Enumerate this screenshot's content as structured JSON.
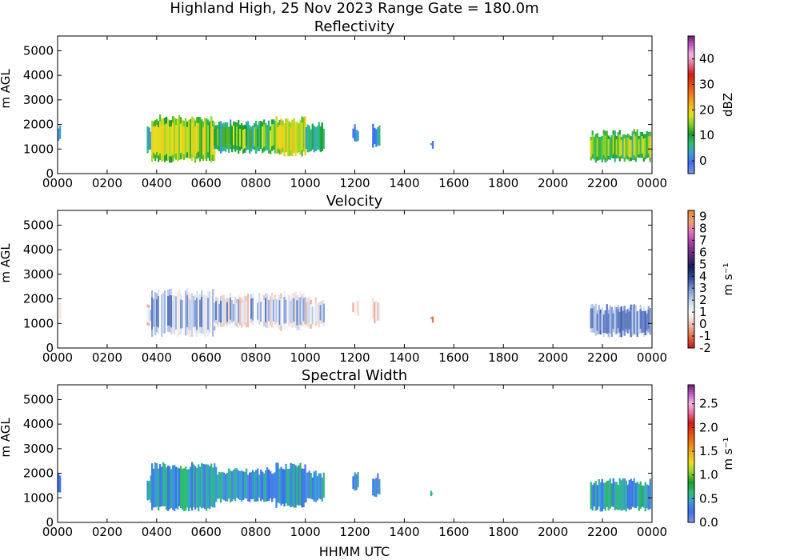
{
  "figure": {
    "suptitle": "Highland High, 25 Nov 2023 Range Gate = 180.0m",
    "xlabel": "HHMM UTC"
  },
  "chart_data": [
    {
      "type": "heatmap",
      "title": "Reflectivity",
      "ylabel": "m AGL",
      "xticks": [
        "0000",
        "0200",
        "0400",
        "0600",
        "0800",
        "1000",
        "1200",
        "1400",
        "1600",
        "1800",
        "2000",
        "2200",
        "0000"
      ],
      "yticks": [
        "0",
        "1000",
        "2000",
        "3000",
        "4000",
        "5000"
      ],
      "xlim_hours": [
        0,
        24
      ],
      "ylim": [
        0,
        5600
      ],
      "colorbar": {
        "label": "dBZ",
        "ticks": [
          "0",
          "10",
          "20",
          "30",
          "40"
        ],
        "tick_values": [
          0,
          10,
          20,
          30,
          40
        ],
        "range": [
          -5,
          49
        ],
        "colors": [
          "#7a93e6",
          "#3f6ef0",
          "#3aa0d8",
          "#2fbf6f",
          "#1a9a2a",
          "#8ad62a",
          "#e8e020",
          "#f3b21a",
          "#ef7d15",
          "#e84a10",
          "#d11a10",
          "#e86a9a",
          "#f2b8e0",
          "#c05ac8",
          "#6a1a6a"
        ]
      },
      "echo_regions": [
        {
          "start": 0.0,
          "end": 0.12,
          "base": 1300,
          "top": 1900,
          "level": 0.12
        },
        {
          "start": 3.6,
          "end": 3.78,
          "base": 900,
          "top": 1800,
          "level": 0.15
        },
        {
          "start": 3.78,
          "end": 6.3,
          "base": 550,
          "top": 2250,
          "level": 0.33
        },
        {
          "start": 6.3,
          "end": 8.8,
          "base": 900,
          "top": 2050,
          "level": 0.22
        },
        {
          "start": 8.8,
          "end": 10.0,
          "base": 800,
          "top": 2200,
          "level": 0.4
        },
        {
          "start": 10.0,
          "end": 10.75,
          "base": 900,
          "top": 1950,
          "level": 0.2
        },
        {
          "start": 11.9,
          "end": 12.1,
          "base": 1400,
          "top": 1900,
          "level": 0.1
        },
        {
          "start": 12.7,
          "end": 13.0,
          "base": 1100,
          "top": 1900,
          "level": 0.12
        },
        {
          "start": 15.05,
          "end": 15.12,
          "base": 1100,
          "top": 1300,
          "level": 0.1
        },
        {
          "start": 21.5,
          "end": 23.9,
          "base": 550,
          "top": 1650,
          "level": 0.25
        }
      ]
    },
    {
      "type": "heatmap",
      "title": "Velocity",
      "ylabel": "m s⁻¹",
      "yaxis_label": "m AGL",
      "xticks": [
        "0000",
        "0200",
        "0400",
        "0600",
        "0800",
        "1000",
        "1200",
        "1400",
        "1600",
        "1800",
        "2000",
        "2200",
        "0000"
      ],
      "yticks": [
        "0",
        "1000",
        "2000",
        "3000",
        "4000",
        "5000"
      ],
      "xlim_hours": [
        0,
        24
      ],
      "ylim": [
        0,
        5600
      ],
      "colorbar": {
        "label": "m s⁻¹",
        "ticks": [
          "-2",
          "-1",
          "0",
          "1",
          "2",
          "3",
          "4",
          "5",
          "6",
          "7",
          "8",
          "9"
        ],
        "tick_values": [
          -2,
          -1,
          0,
          1,
          2,
          3,
          4,
          5,
          6,
          7,
          8,
          9
        ],
        "range": [
          -2,
          9.5
        ],
        "colors": [
          "#c8201a",
          "#e87050",
          "#f2c0b0",
          "#ffffff",
          "#c8d6ee",
          "#7f9ad6",
          "#2f4fa0",
          "#1a1a5a",
          "#5a2a7a",
          "#a03aa0",
          "#e070c0",
          "#f0a070",
          "#f08030"
        ]
      },
      "echo_regions": [
        {
          "start": 0.0,
          "end": 0.12,
          "base": 1300,
          "top": 1900,
          "level": 0.2
        },
        {
          "start": 3.6,
          "end": 3.78,
          "base": 900,
          "top": 1800,
          "level": 0.22
        },
        {
          "start": 3.78,
          "end": 6.3,
          "base": 550,
          "top": 2300,
          "level": 0.3
        },
        {
          "start": 6.3,
          "end": 8.8,
          "base": 900,
          "top": 2100,
          "level": 0.25
        },
        {
          "start": 8.8,
          "end": 10.0,
          "base": 800,
          "top": 2200,
          "level": 0.25
        },
        {
          "start": 10.0,
          "end": 10.75,
          "base": 900,
          "top": 1950,
          "level": 0.22
        },
        {
          "start": 11.9,
          "end": 12.1,
          "base": 1400,
          "top": 1900,
          "level": 0.2
        },
        {
          "start": 12.7,
          "end": 13.0,
          "base": 1100,
          "top": 1900,
          "level": 0.2
        },
        {
          "start": 15.05,
          "end": 15.12,
          "base": 1100,
          "top": 1300,
          "level": 0.15
        },
        {
          "start": 21.5,
          "end": 23.9,
          "base": 550,
          "top": 1650,
          "level": 0.4
        }
      ]
    },
    {
      "type": "heatmap",
      "title": "Spectral Width",
      "ylabel": "m s⁻¹",
      "yaxis_label": "m AGL",
      "xticks": [
        "0000",
        "0200",
        "0400",
        "0600",
        "0800",
        "1000",
        "1200",
        "1400",
        "1600",
        "1800",
        "2000",
        "2200",
        "0000"
      ],
      "yticks": [
        "0",
        "1000",
        "2000",
        "3000",
        "4000",
        "5000"
      ],
      "xlim_hours": [
        0,
        24
      ],
      "ylim": [
        0,
        5600
      ],
      "colorbar": {
        "label": "m s⁻¹",
        "ticks": [
          "0.0",
          "0.5",
          "1.0",
          "1.5",
          "2.0",
          "2.5"
        ],
        "tick_values": [
          0,
          0.5,
          1.0,
          1.5,
          2.0,
          2.5
        ],
        "range": [
          0,
          2.9
        ],
        "colors": [
          "#7a93e6",
          "#3f6ef0",
          "#3aa0d8",
          "#2fbf6f",
          "#1a9a2a",
          "#8ad62a",
          "#e8e020",
          "#f3b21a",
          "#ef7d15",
          "#e84a10",
          "#d11a10",
          "#e86a9a",
          "#f2b8e0",
          "#c05ac8",
          "#6a1a6a"
        ]
      },
      "echo_regions": [
        {
          "start": 0.0,
          "end": 0.12,
          "base": 1300,
          "top": 2000,
          "level": 0.1
        },
        {
          "start": 3.6,
          "end": 3.78,
          "base": 900,
          "top": 1800,
          "level": 0.12
        },
        {
          "start": 3.78,
          "end": 6.3,
          "base": 550,
          "top": 2300,
          "level": 0.14
        },
        {
          "start": 6.3,
          "end": 8.8,
          "base": 900,
          "top": 2100,
          "level": 0.12
        },
        {
          "start": 8.8,
          "end": 10.0,
          "base": 700,
          "top": 2300,
          "level": 0.14
        },
        {
          "start": 10.0,
          "end": 10.75,
          "base": 900,
          "top": 1950,
          "level": 0.12
        },
        {
          "start": 11.9,
          "end": 12.1,
          "base": 1400,
          "top": 1900,
          "level": 0.1
        },
        {
          "start": 12.7,
          "end": 13.0,
          "base": 1100,
          "top": 1900,
          "level": 0.1
        },
        {
          "start": 15.05,
          "end": 15.12,
          "base": 1100,
          "top": 1300,
          "level": 0.1
        },
        {
          "start": 21.5,
          "end": 23.9,
          "base": 550,
          "top": 1650,
          "level": 0.16
        }
      ]
    }
  ]
}
